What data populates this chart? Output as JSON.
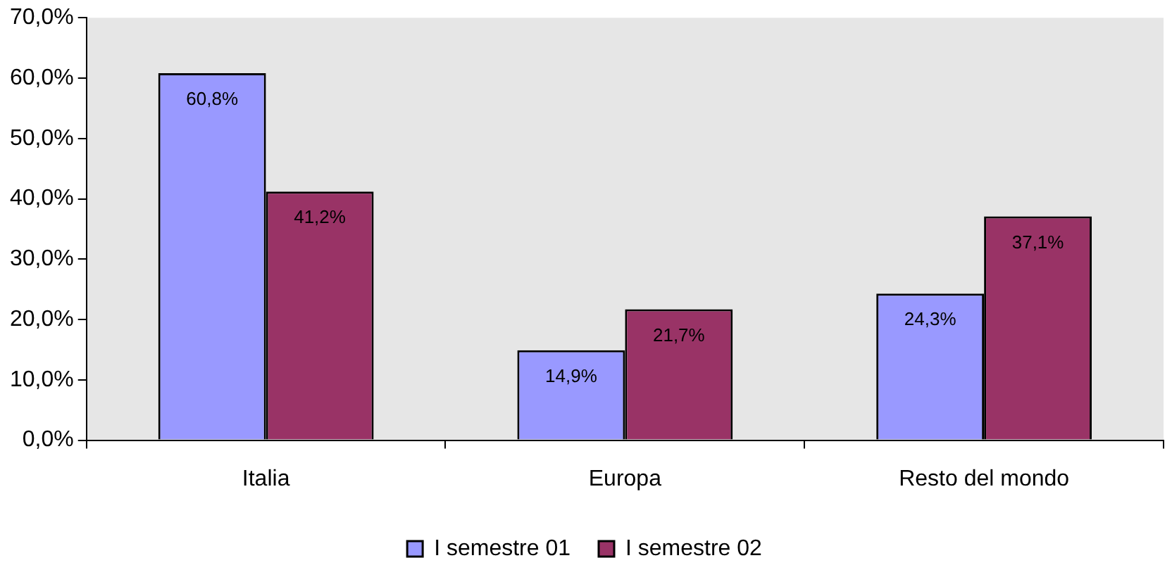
{
  "chart_data": {
    "type": "bar",
    "categories": [
      "Italia",
      "Europa",
      "Resto del mondo"
    ],
    "series": [
      {
        "name": "I semestre 01",
        "color": "#9999ff",
        "values": [
          60.8,
          14.9,
          24.3
        ],
        "value_labels": [
          "60,8%",
          "14,9%",
          "24,3%"
        ]
      },
      {
        "name": "I semestre 02",
        "color": "#993366",
        "values": [
          41.2,
          21.7,
          37.1
        ],
        "value_labels": [
          "41,2%",
          "21,7%",
          "37,1%"
        ]
      }
    ],
    "ylim": [
      0,
      70
    ],
    "yticks": [
      {
        "value": 0,
        "label": "0,0%"
      },
      {
        "value": 10,
        "label": "10,0%"
      },
      {
        "value": 20,
        "label": "20,0%"
      },
      {
        "value": 30,
        "label": "30,0%"
      },
      {
        "value": 40,
        "label": "40,0%"
      },
      {
        "value": 50,
        "label": "50,0%"
      },
      {
        "value": 60,
        "label": "60,0%"
      },
      {
        "value": 70,
        "label": "70,0%"
      }
    ],
    "grid": false,
    "legend": "bottom"
  }
}
